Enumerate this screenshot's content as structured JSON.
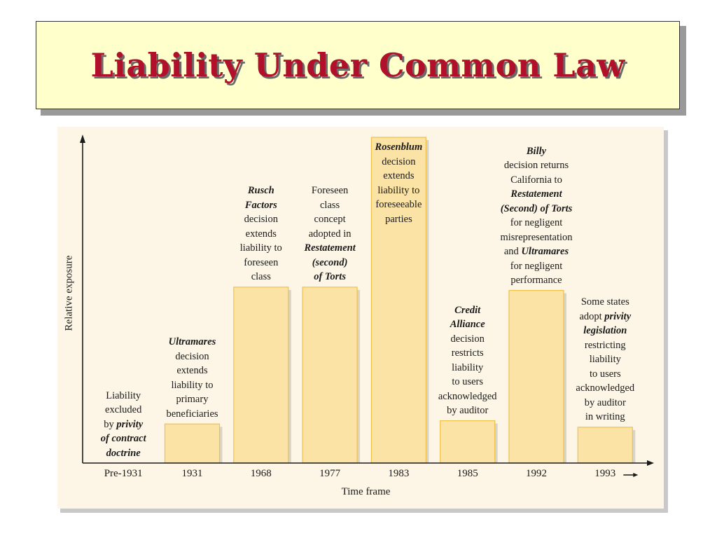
{
  "slide": {
    "title": "Liability Under Common Law"
  },
  "chart_data": {
    "type": "bar",
    "xlabel": "Time frame",
    "ylabel": "Relative exposure",
    "ylim": [
      0,
      100
    ],
    "categories": [
      "Pre-1931",
      "1931",
      "1968",
      "1977",
      "1983",
      "1985",
      "1992",
      "1993"
    ],
    "values": [
      0,
      12,
      54,
      54,
      100,
      13,
      53,
      11
    ],
    "colors": {
      "bar_fill": "#fbe3a6",
      "bar_stroke": "#f0c14a",
      "bar_shadow": "#d9d4c8",
      "axis": "#1a1a1a",
      "panel": "#fdf6e6"
    },
    "annotations": [
      {
        "lines": [
          [
            {
              "t": "Liability"
            }
          ],
          [
            {
              "t": "excluded"
            }
          ],
          [
            {
              "t": "by "
            },
            {
              "t": "privity",
              "e": true
            }
          ],
          [
            {
              "t": "of contract",
              "e": true
            }
          ],
          [
            {
              "t": "doctrine",
              "e": true
            }
          ]
        ]
      },
      {
        "lines": [
          [
            {
              "t": "Ultramares",
              "e": true
            }
          ],
          [
            {
              "t": "decision"
            }
          ],
          [
            {
              "t": "extends"
            }
          ],
          [
            {
              "t": "liability to"
            }
          ],
          [
            {
              "t": "primary"
            }
          ],
          [
            {
              "t": "beneficiaries"
            }
          ]
        ]
      },
      {
        "lines": [
          [
            {
              "t": "Rusch",
              "e": true
            }
          ],
          [
            {
              "t": "Factors",
              "e": true
            }
          ],
          [
            {
              "t": "decision"
            }
          ],
          [
            {
              "t": "extends"
            }
          ],
          [
            {
              "t": "liability to"
            }
          ],
          [
            {
              "t": "foreseen"
            }
          ],
          [
            {
              "t": "class"
            }
          ]
        ]
      },
      {
        "lines": [
          [
            {
              "t": "Foreseen"
            }
          ],
          [
            {
              "t": "class"
            }
          ],
          [
            {
              "t": "concept"
            }
          ],
          [
            {
              "t": "adopted in"
            }
          ],
          [
            {
              "t": "Restatement",
              "e": true
            }
          ],
          [
            {
              "t": "(second)",
              "e": true
            }
          ],
          [
            {
              "t": "of Torts",
              "e": true
            }
          ]
        ]
      },
      {
        "lines": [
          [
            {
              "t": "Rosenblum",
              "e": true
            }
          ],
          [
            {
              "t": "decision"
            }
          ],
          [
            {
              "t": "extends"
            }
          ],
          [
            {
              "t": "liability to"
            }
          ],
          [
            {
              "t": "foreseeable"
            }
          ],
          [
            {
              "t": "parties"
            }
          ]
        ]
      },
      {
        "lines": [
          [
            {
              "t": "Credit",
              "e": true
            }
          ],
          [
            {
              "t": "Alliance",
              "e": true
            }
          ],
          [
            {
              "t": "decision"
            }
          ],
          [
            {
              "t": "restricts"
            }
          ],
          [
            {
              "t": "liability"
            }
          ],
          [
            {
              "t": "to users"
            }
          ],
          [
            {
              "t": "acknowledged"
            }
          ],
          [
            {
              "t": "by auditor"
            }
          ]
        ]
      },
      {
        "lines": [
          [
            {
              "t": "Billy",
              "e": true
            }
          ],
          [
            {
              "t": "decision returns"
            }
          ],
          [
            {
              "t": "California to"
            }
          ],
          [
            {
              "t": "Restatement",
              "e": true
            }
          ],
          [
            {
              "t": "(Second) of Torts",
              "e": true
            }
          ],
          [
            {
              "t": "for negligent"
            }
          ],
          [
            {
              "t": "misrepresentation"
            }
          ],
          [
            {
              "t": "and "
            },
            {
              "t": "Ultramares",
              "e": true
            }
          ],
          [
            {
              "t": "for negligent"
            }
          ],
          [
            {
              "t": "performance"
            }
          ]
        ]
      },
      {
        "lines": [
          [
            {
              "t": "Some states"
            }
          ],
          [
            {
              "t": "adopt "
            },
            {
              "t": "privity",
              "e": true
            }
          ],
          [
            {
              "t": "legislation",
              "e": true
            }
          ],
          [
            {
              "t": "restricting"
            }
          ],
          [
            {
              "t": "liability"
            }
          ],
          [
            {
              "t": "to users"
            }
          ],
          [
            {
              "t": "acknowledged"
            }
          ],
          [
            {
              "t": "by auditor"
            }
          ],
          [
            {
              "t": "in writing"
            }
          ]
        ]
      }
    ]
  }
}
